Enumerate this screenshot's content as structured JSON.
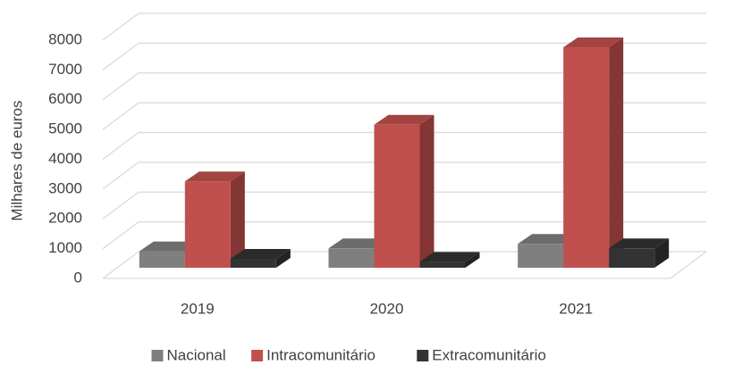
{
  "chart_data": {
    "type": "bar3d",
    "y_label": "Milhares de euros",
    "categories": [
      "2019",
      "2020",
      "2021"
    ],
    "series": [
      {
        "name": "Nacional",
        "color": "#7f7f7f",
        "values": [
          550,
          650,
          800
        ]
      },
      {
        "name": "Intracomunitário",
        "color": "#c0504d",
        "values": [
          2900,
          4800,
          7400
        ]
      },
      {
        "name": "Extracomunitário",
        "color": "#333333",
        "values": [
          300,
          200,
          650
        ]
      }
    ],
    "ylim": [
      0,
      8000
    ],
    "yticks": [
      0,
      1000,
      2000,
      3000,
      4000,
      5000,
      6000,
      7000,
      8000
    ],
    "grid": true
  }
}
